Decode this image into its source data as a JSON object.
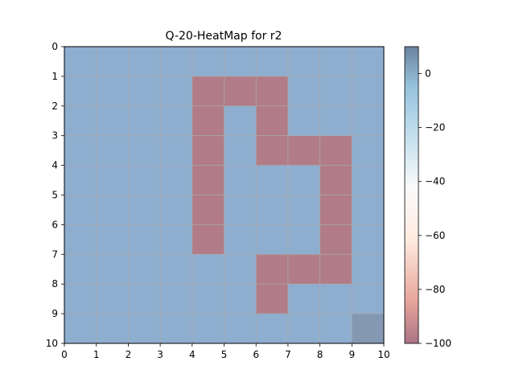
{
  "chart_data": {
    "type": "heatmap",
    "title": "Q-20-HeatMap for r2",
    "xlabel": "",
    "ylabel": "",
    "x_ticks": [
      "0",
      "1",
      "2",
      "3",
      "4",
      "5",
      "6",
      "7",
      "8",
      "9",
      "10"
    ],
    "y_ticks": [
      "0",
      "1",
      "2",
      "3",
      "4",
      "5",
      "6",
      "7",
      "8",
      "9",
      "10"
    ],
    "xlim": [
      0,
      10
    ],
    "ylim": [
      10,
      0
    ],
    "grid": true,
    "grid_cells": [
      [
        0,
        0,
        0,
        0,
        0,
        0,
        0,
        0,
        0,
        0
      ],
      [
        0,
        0,
        0,
        0,
        -100,
        -100,
        -100,
        0,
        0,
        0
      ],
      [
        0,
        0,
        0,
        0,
        -100,
        0,
        -100,
        0,
        0,
        0
      ],
      [
        0,
        0,
        0,
        0,
        -100,
        0,
        -100,
        -100,
        -100,
        0
      ],
      [
        0,
        0,
        0,
        0,
        -100,
        0,
        0,
        0,
        -100,
        0
      ],
      [
        0,
        0,
        0,
        0,
        -100,
        0,
        0,
        0,
        -100,
        0
      ],
      [
        0,
        0,
        0,
        0,
        -100,
        0,
        0,
        0,
        -100,
        0
      ],
      [
        0,
        0,
        0,
        0,
        0,
        0,
        -100,
        -100,
        -100,
        0
      ],
      [
        0,
        0,
        0,
        0,
        0,
        0,
        -100,
        0,
        0,
        0
      ],
      [
        0,
        0,
        0,
        0,
        0,
        0,
        0,
        0,
        0,
        10
      ]
    ],
    "colorbar": {
      "min": -100,
      "max": 10,
      "ticks": [
        "0",
        "−20",
        "−40",
        "−60",
        "−80",
        "−100"
      ],
      "tick_values": [
        0,
        -20,
        -40,
        -60,
        -80,
        -100
      ],
      "colormap": "RdBu"
    }
  }
}
